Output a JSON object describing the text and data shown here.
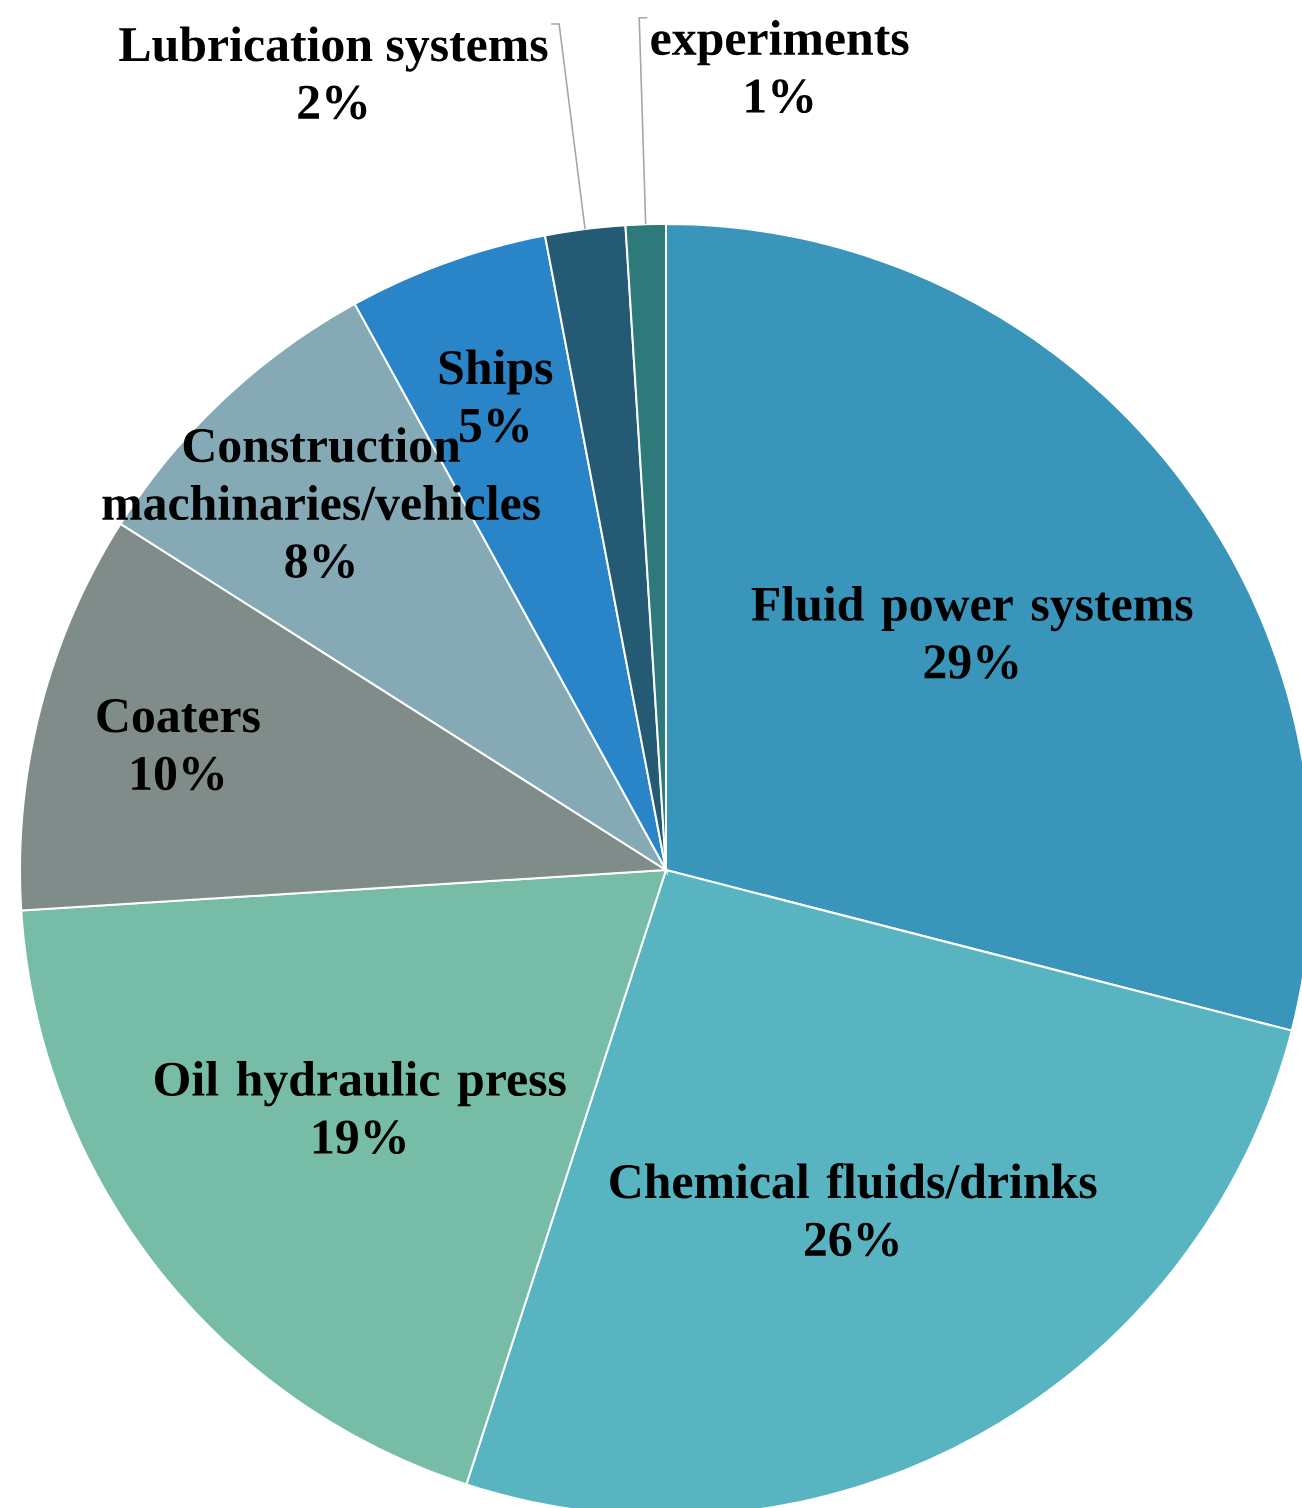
{
  "chart_data": {
    "type": "pie",
    "categories": [
      "Fluid power systems",
      "Chemical fluids/drinks",
      "Oil hydraulic press",
      "Coaters",
      "Construction machinaries/vehicles",
      "Ships",
      "Lubrication systems",
      "experiments"
    ],
    "values": [
      29,
      26,
      19,
      10,
      8,
      5,
      2,
      1
    ],
    "value_labels": [
      "29%",
      "26%",
      "19%",
      "10%",
      "8%",
      "5%",
      "2%",
      "1%"
    ],
    "colors": [
      "#3a95bb",
      "#57b4c0",
      "#76bca6",
      "#7f8c8a",
      "#85aab5",
      "#2a85c8",
      "#255a75",
      "#2e7a7a"
    ]
  }
}
